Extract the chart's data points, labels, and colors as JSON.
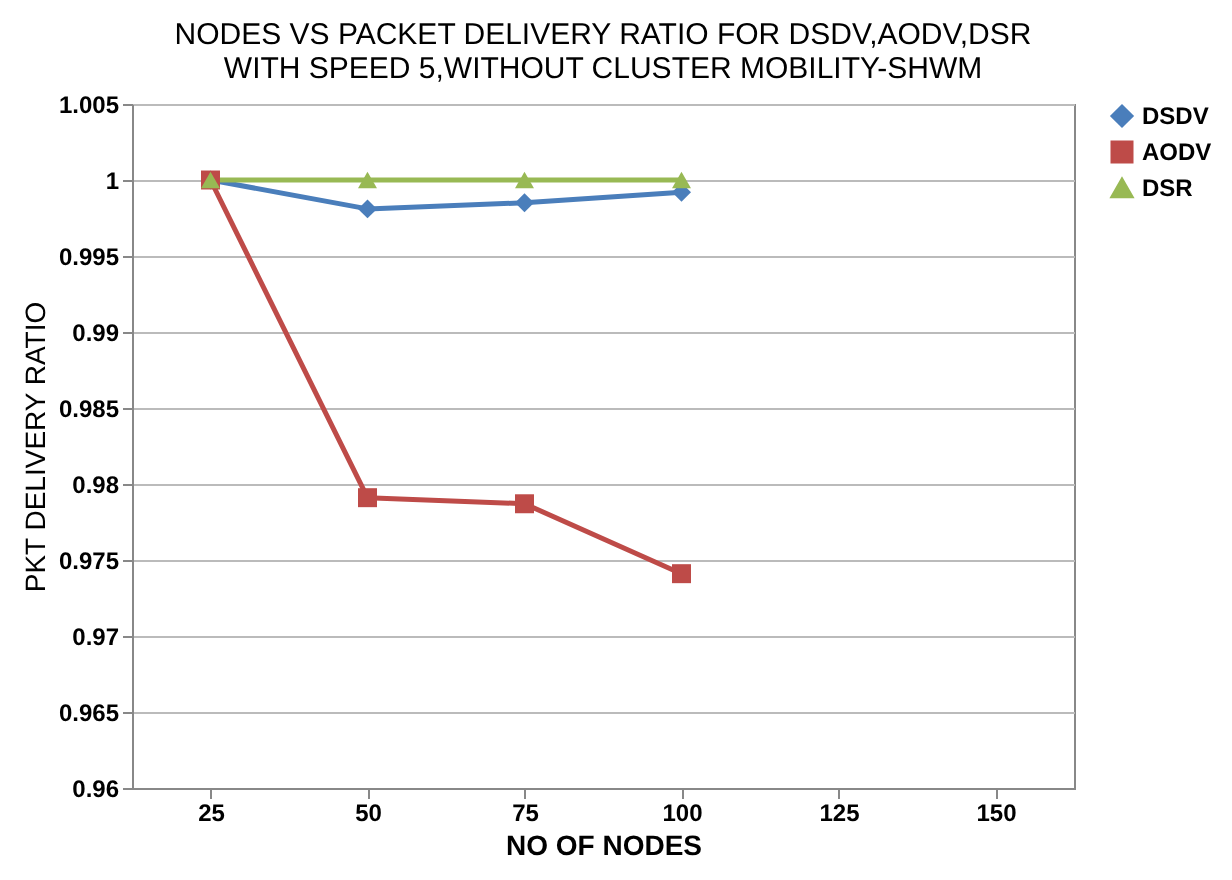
{
  "chart_data": {
    "type": "line",
    "title": [
      "NODES VS PACKET DELIVERY RATIO FOR DSDV,AODV,DSR",
      "WITH SPEED 5,WITHOUT CLUSTER  MOBILITY-SHWM"
    ],
    "xlabel": "NO OF NODES",
    "ylabel": "PKT DELIVERY RATIO",
    "categories": [
      "25",
      "50",
      "75",
      "100",
      "125",
      "150"
    ],
    "series": [
      {
        "name": "DSDV",
        "color": "#4a7ebb",
        "marker": "diamond",
        "values": [
          1,
          0.9981,
          0.9985,
          0.9992,
          null,
          null
        ]
      },
      {
        "name": "AODV",
        "color": "#be4b48",
        "marker": "square",
        "values": [
          1,
          0.9791,
          0.9787,
          0.9741,
          null,
          null
        ]
      },
      {
        "name": "DSR",
        "color": "#98b954",
        "marker": "triangle",
        "values": [
          1,
          1,
          1,
          1,
          null,
          null
        ]
      }
    ],
    "ylim": [
      0.96,
      1.005
    ],
    "yticks": [
      0.96,
      0.965,
      0.97,
      0.975,
      0.98,
      0.985,
      0.99,
      0.995,
      1,
      1.005
    ],
    "grid": "y",
    "legend": "right"
  }
}
